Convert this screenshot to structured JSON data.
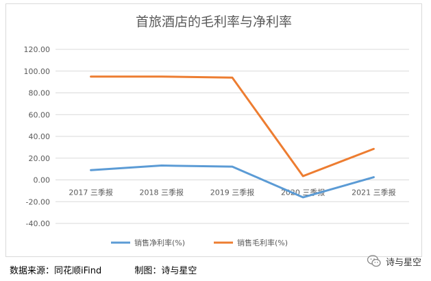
{
  "chart_data": {
    "type": "line",
    "title": "首旅酒店的毛利率与净利率",
    "categories": [
      "2017 三季报",
      "2018 三季报",
      "2019 三季报",
      "2020 三季报",
      "2021 三季报"
    ],
    "series": [
      {
        "name": "销售净利率(%)",
        "color": "#5b9bd5",
        "values": [
          9.0,
          13.2,
          12.2,
          -16.0,
          2.5
        ]
      },
      {
        "name": "销售毛利率(%)",
        "color": "#ed7d31",
        "values": [
          95.0,
          95.0,
          94.0,
          3.5,
          28.5
        ]
      }
    ],
    "yticks": [
      "120.00",
      "100.00",
      "80.00",
      "60.00",
      "40.00",
      "20.00",
      "0.00",
      "-20.00",
      "-40.00"
    ],
    "ylim": [
      -40,
      120
    ],
    "ystep": 20,
    "grid": true,
    "legend_position": "bottom"
  },
  "footer": {
    "source": "数据来源：同花顺iFind",
    "maker": "制图：诗与星空"
  },
  "watermark": {
    "text": "诗与星空",
    "icon": "wechat-icon"
  }
}
